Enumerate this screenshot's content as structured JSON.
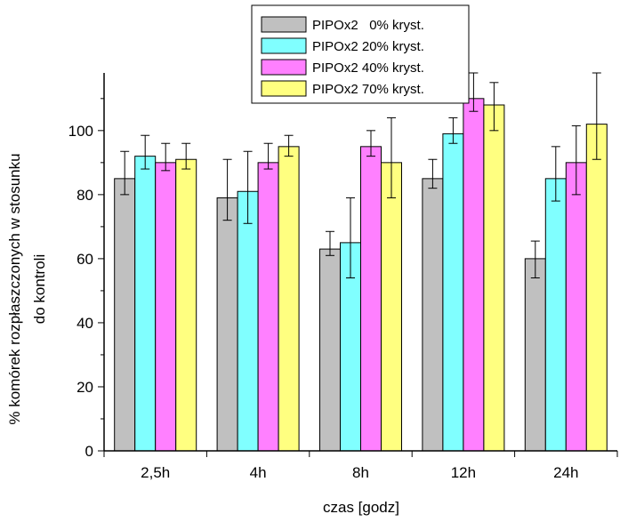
{
  "chart_data": {
    "type": "bar",
    "xlabel": "czas [godz]",
    "ylabel_line1": "% komórek rozpłaszczonych w stosunku",
    "ylabel_line2": "do kontroli",
    "ylim": [
      0,
      118
    ],
    "yticks": [
      0,
      20,
      40,
      60,
      80,
      100
    ],
    "categories": [
      "2,5h",
      "4h",
      "8h",
      "12h",
      "24h"
    ],
    "legend_position": "top-center",
    "grid": false,
    "series": [
      {
        "name": "PIPOx2   0% kryst.",
        "color": "#c0c0c0",
        "values": [
          85,
          79,
          63,
          85,
          60
        ],
        "err_low": [
          80,
          72,
          61,
          82,
          54
        ],
        "err_high": [
          93.5,
          91,
          68.5,
          91,
          65.5
        ]
      },
      {
        "name": "PIPOx2 20% kryst.",
        "color": "#80ffff",
        "values": [
          92,
          81,
          65,
          99,
          85
        ],
        "err_low": [
          88,
          71,
          54,
          96,
          78
        ],
        "err_high": [
          98.5,
          93.5,
          79,
          104,
          95
        ]
      },
      {
        "name": "PIPOx2 40% kryst.",
        "color": "#ff80ff",
        "values": [
          90,
          90,
          95,
          110,
          90
        ],
        "err_low": [
          87.5,
          88,
          92,
          106,
          80
        ],
        "err_high": [
          96,
          96,
          100,
          118,
          101.5
        ]
      },
      {
        "name": "PIPOx2 70% kryst.",
        "color": "#ffff80",
        "values": [
          91,
          95,
          90,
          108,
          102
        ],
        "err_low": [
          88,
          92,
          79,
          100,
          91
        ],
        "err_high": [
          96,
          98.5,
          104,
          115,
          118
        ]
      }
    ]
  }
}
